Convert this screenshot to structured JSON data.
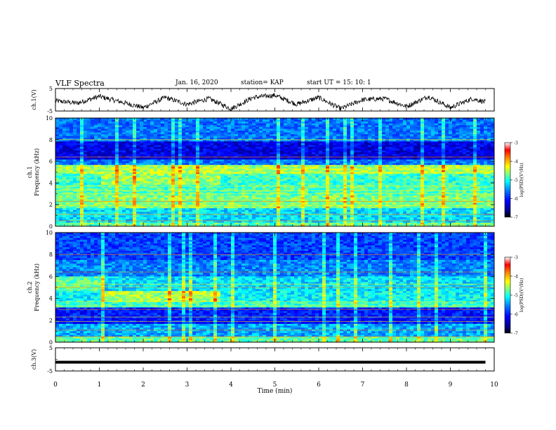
{
  "header": {
    "title": "VLF Spectra",
    "date": "Jan. 16, 2020",
    "station": "station= KAP",
    "start": "start UT = 15: 10: 1"
  },
  "colors": {
    "colormap": [
      "#000080",
      "#0000ff",
      "#0080ff",
      "#00ffff",
      "#80ff80",
      "#ffff00",
      "#ff8000",
      "#ff0000",
      "#ffffff"
    ]
  },
  "chart_data": [
    {
      "type": "line",
      "name": "ch1-waveform",
      "ylabel": "ch.1(V)",
      "ylim": [
        -5,
        5
      ],
      "yticks": [
        "5",
        "-5"
      ],
      "xlim": [
        0,
        10
      ],
      "x": [
        0,
        0.5,
        1,
        1.5,
        2,
        2.5,
        3,
        3.5,
        4,
        4.5,
        5,
        5.5,
        6,
        6.5,
        7,
        7.5,
        8,
        8.5,
        9,
        9.5,
        9.8
      ],
      "y": [
        -0.5,
        -1.5,
        1.5,
        -1,
        -3.5,
        1,
        -2,
        0.5,
        -4,
        1,
        2,
        -2,
        1,
        -4,
        0,
        0.5,
        -3,
        1.5,
        -3.5,
        0.5,
        -1
      ]
    },
    {
      "type": "heatmap",
      "name": "ch1-spectrogram",
      "ylabel": "ch.1 Frequency (kHz)",
      "ylim": [
        0,
        10
      ],
      "yticks": [
        "0",
        "2",
        "4",
        "6",
        "8",
        "10"
      ],
      "xlim": [
        0,
        10
      ],
      "colorbar": {
        "label": "log(PSD)(V²/Hz)",
        "range": [
          -7,
          -3
        ],
        "ticks": [
          "-3",
          "-4",
          "-5",
          "-6",
          "-7"
        ]
      }
    },
    {
      "type": "heatmap",
      "name": "ch2-spectrogram",
      "ylabel": "ch.2 Frequency (kHz)",
      "ylim": [
        0,
        10
      ],
      "yticks": [
        "0",
        "2",
        "4",
        "6",
        "8",
        "10"
      ],
      "xlim": [
        0,
        10
      ],
      "colorbar": {
        "label": "log(PSD)(V²/Hz)",
        "range": [
          -7,
          -3
        ],
        "ticks": [
          "-3",
          "-4",
          "-5",
          "-6",
          "-7"
        ]
      }
    },
    {
      "type": "line",
      "name": "ch3-waveform",
      "ylabel": "ch.3(V)",
      "ylim": [
        -5,
        5
      ],
      "yticks": [
        "5",
        "-5"
      ],
      "xlim": [
        0,
        10
      ],
      "x": [
        0,
        9.8
      ],
      "y": [
        -1.2,
        -1.2
      ]
    }
  ],
  "xaxis": {
    "label": "Time (min)",
    "ticks": [
      "0",
      "1",
      "2",
      "3",
      "4",
      "5",
      "6",
      "7",
      "8",
      "9",
      "10"
    ]
  }
}
